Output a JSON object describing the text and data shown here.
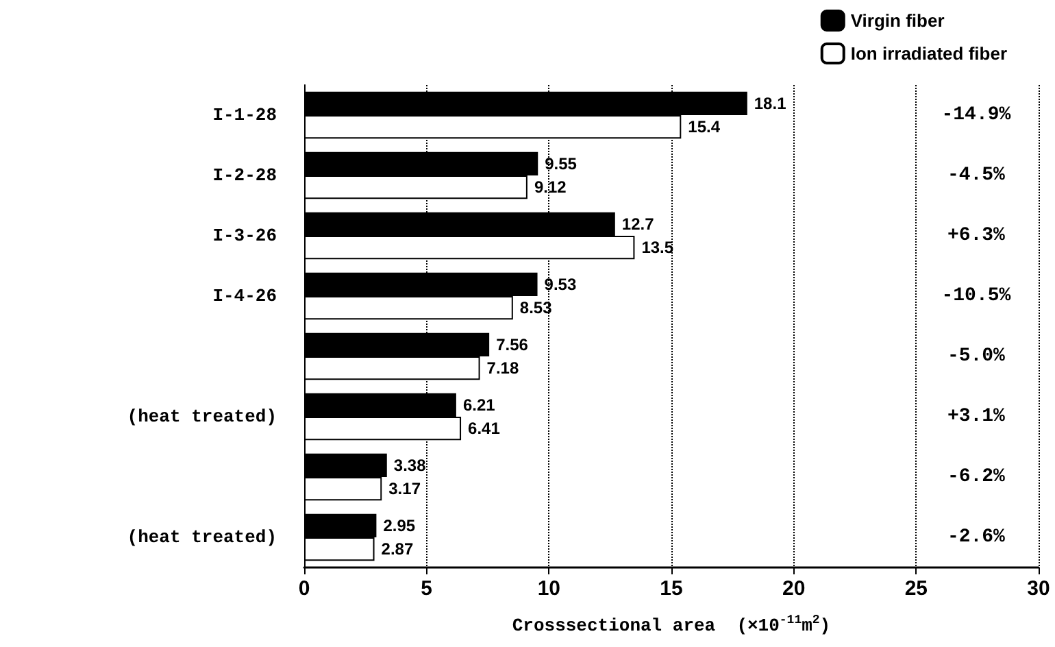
{
  "chart_data": {
    "type": "bar",
    "orientation": "horizontal",
    "xlabel": "Crosssectional area  (×10$^{-11}$m$^{2}$)",
    "categories": [
      "I-1-28",
      "I-2-28",
      "I-3-26",
      "I-4-26",
      null,
      "(heat treated)",
      null,
      "(heat treated)"
    ],
    "series": [
      {
        "name": "Virgin fiber",
        "color": "#000000",
        "values": [
          18.1,
          9.55,
          12.7,
          9.53,
          7.56,
          6.21,
          3.38,
          2.95
        ]
      },
      {
        "name": "Ion irradiated fiber",
        "color": "#ffffff",
        "values": [
          15.4,
          9.12,
          13.5,
          8.53,
          7.18,
          6.41,
          3.17,
          2.87
        ]
      }
    ],
    "xlim": [
      0,
      30
    ],
    "xticks": [
      0,
      5,
      10,
      15,
      20,
      25,
      30
    ],
    "grid": "x",
    "legend": "top right",
    "data_labels": true,
    "annotations": [
      "-14.9%",
      "-4.5%",
      "+6.3%",
      "-10.5%",
      "-5.0%",
      "+3.1%",
      "-6.2%",
      "-2.6%"
    ]
  }
}
